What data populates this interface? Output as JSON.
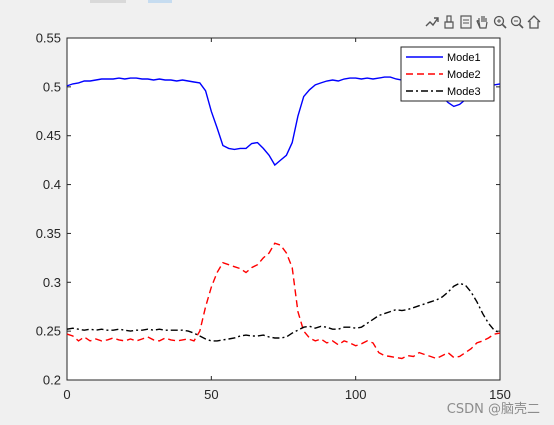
{
  "toolbar": {
    "icons": [
      "export-icon",
      "brush-icon",
      "datatip-icon",
      "pan-icon",
      "zoom-in-icon",
      "zoom-out-icon",
      "home-icon"
    ]
  },
  "watermark": "CSDN @脑壳二",
  "colors": {
    "mode1": "#0000ff",
    "mode2": "#ff0000",
    "mode3": "#000000"
  },
  "chart_data": {
    "type": "line",
    "title": "",
    "xlabel": "",
    "ylabel": "",
    "xlim": [
      0,
      150
    ],
    "ylim": [
      0.2,
      0.55
    ],
    "xticks": [
      0,
      50,
      100,
      150
    ],
    "yticks": [
      0.2,
      0.25,
      0.3,
      0.35,
      0.4,
      0.45,
      0.5,
      0.55
    ],
    "xtick_labels": [
      "0",
      "50",
      "100",
      "150"
    ],
    "ytick_labels": [
      "0.2",
      "0.25",
      "0.3",
      "0.35",
      "0.4",
      "0.45",
      "0.5",
      "0.55"
    ],
    "grid": false,
    "legend_position": "top-right",
    "series": [
      {
        "name": "Mode1",
        "style": "solid",
        "color": "#0000ff",
        "x": [
          0,
          2,
          4,
          6,
          8,
          10,
          12,
          14,
          16,
          18,
          20,
          22,
          24,
          26,
          28,
          30,
          32,
          34,
          36,
          38,
          40,
          42,
          44,
          46,
          48,
          50,
          52,
          54,
          56,
          58,
          60,
          62,
          64,
          66,
          68,
          70,
          72,
          74,
          76,
          78,
          80,
          82,
          84,
          86,
          88,
          90,
          92,
          94,
          96,
          98,
          100,
          102,
          104,
          106,
          108,
          110,
          112,
          114,
          116,
          118,
          120,
          122,
          124,
          126,
          128,
          130,
          132,
          134,
          136,
          138,
          140,
          142,
          144,
          146,
          148,
          150
        ],
        "y": [
          0.501,
          0.503,
          0.504,
          0.506,
          0.506,
          0.507,
          0.508,
          0.508,
          0.508,
          0.509,
          0.508,
          0.509,
          0.509,
          0.508,
          0.508,
          0.507,
          0.508,
          0.507,
          0.507,
          0.506,
          0.507,
          0.506,
          0.505,
          0.504,
          0.496,
          0.475,
          0.458,
          0.44,
          0.437,
          0.436,
          0.437,
          0.437,
          0.442,
          0.443,
          0.437,
          0.43,
          0.42,
          0.425,
          0.43,
          0.443,
          0.47,
          0.49,
          0.497,
          0.502,
          0.504,
          0.506,
          0.507,
          0.506,
          0.508,
          0.509,
          0.509,
          0.508,
          0.509,
          0.508,
          0.509,
          0.51,
          0.51,
          0.508,
          0.507,
          0.505,
          0.504,
          0.502,
          0.503,
          0.502,
          0.497,
          0.49,
          0.484,
          0.48,
          0.482,
          0.487,
          0.495,
          0.5,
          0.502,
          0.503,
          0.502,
          0.503
        ]
      },
      {
        "name": "Mode2",
        "style": "dashed",
        "color": "#ff0000",
        "x": [
          0,
          2,
          4,
          6,
          8,
          10,
          12,
          14,
          16,
          18,
          20,
          22,
          24,
          26,
          28,
          30,
          32,
          34,
          36,
          38,
          40,
          42,
          44,
          46,
          48,
          50,
          52,
          54,
          56,
          58,
          60,
          62,
          64,
          66,
          68,
          70,
          72,
          74,
          76,
          78,
          80,
          82,
          84,
          86,
          88,
          90,
          92,
          94,
          96,
          98,
          100,
          102,
          104,
          106,
          108,
          110,
          112,
          114,
          116,
          118,
          120,
          122,
          124,
          126,
          128,
          130,
          132,
          134,
          136,
          138,
          140,
          142,
          144,
          146,
          148,
          150
        ],
        "y": [
          0.247,
          0.245,
          0.24,
          0.244,
          0.24,
          0.242,
          0.24,
          0.241,
          0.243,
          0.241,
          0.24,
          0.242,
          0.24,
          0.242,
          0.244,
          0.241,
          0.24,
          0.243,
          0.241,
          0.24,
          0.241,
          0.242,
          0.24,
          0.25,
          0.275,
          0.295,
          0.31,
          0.32,
          0.318,
          0.316,
          0.314,
          0.31,
          0.315,
          0.318,
          0.325,
          0.33,
          0.34,
          0.338,
          0.33,
          0.315,
          0.27,
          0.25,
          0.243,
          0.24,
          0.242,
          0.238,
          0.24,
          0.236,
          0.24,
          0.238,
          0.235,
          0.237,
          0.24,
          0.238,
          0.228,
          0.225,
          0.224,
          0.223,
          0.222,
          0.225,
          0.224,
          0.228,
          0.226,
          0.224,
          0.222,
          0.225,
          0.228,
          0.223,
          0.224,
          0.228,
          0.232,
          0.238,
          0.24,
          0.243,
          0.247,
          0.248
        ]
      },
      {
        "name": "Mode3",
        "style": "dashdot",
        "color": "#000000",
        "x": [
          0,
          2,
          4,
          6,
          8,
          10,
          12,
          14,
          16,
          18,
          20,
          22,
          24,
          26,
          28,
          30,
          32,
          34,
          36,
          38,
          40,
          42,
          44,
          46,
          48,
          50,
          52,
          54,
          56,
          58,
          60,
          62,
          64,
          66,
          68,
          70,
          72,
          74,
          76,
          78,
          80,
          82,
          84,
          86,
          88,
          90,
          92,
          94,
          96,
          98,
          100,
          102,
          104,
          106,
          108,
          110,
          112,
          114,
          116,
          118,
          120,
          122,
          124,
          126,
          128,
          130,
          132,
          134,
          136,
          138,
          140,
          142,
          144,
          146,
          148,
          150
        ],
        "y": [
          0.252,
          0.253,
          0.252,
          0.251,
          0.252,
          0.251,
          0.252,
          0.251,
          0.251,
          0.252,
          0.251,
          0.25,
          0.251,
          0.251,
          0.252,
          0.251,
          0.252,
          0.251,
          0.251,
          0.251,
          0.251,
          0.25,
          0.248,
          0.245,
          0.242,
          0.24,
          0.24,
          0.241,
          0.242,
          0.243,
          0.245,
          0.246,
          0.245,
          0.245,
          0.246,
          0.244,
          0.243,
          0.243,
          0.244,
          0.248,
          0.251,
          0.254,
          0.255,
          0.253,
          0.255,
          0.254,
          0.252,
          0.252,
          0.254,
          0.254,
          0.253,
          0.254,
          0.258,
          0.262,
          0.266,
          0.268,
          0.27,
          0.272,
          0.271,
          0.272,
          0.274,
          0.276,
          0.278,
          0.28,
          0.282,
          0.285,
          0.29,
          0.296,
          0.299,
          0.297,
          0.29,
          0.28,
          0.268,
          0.258,
          0.251,
          0.248
        ]
      }
    ]
  }
}
